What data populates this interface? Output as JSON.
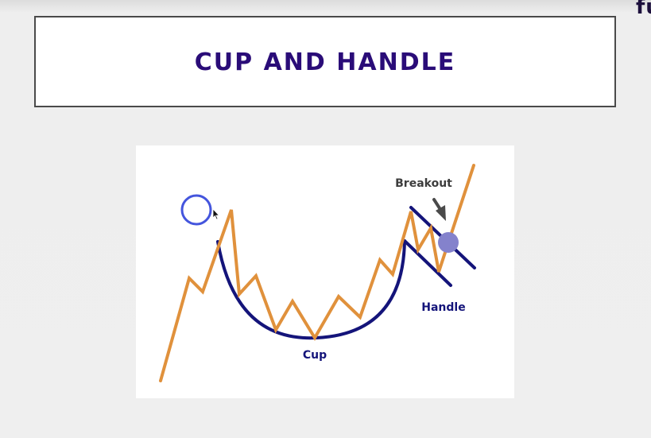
{
  "header": {
    "title": "CUP AND HANDLE",
    "corner_text": "fu"
  },
  "diagram": {
    "labels": {
      "breakout": "Breakout",
      "cup": "Cup",
      "handle": "Handle"
    },
    "colors": {
      "price_line": "#e0913c",
      "pattern_outline": "#14147a",
      "title": "#2a0c78",
      "breakout_marker": "#8482cc",
      "breakout_label": "#3d3d3d",
      "arrow": "#4a4a4a",
      "cursor_ring": "#4455dd"
    }
  }
}
